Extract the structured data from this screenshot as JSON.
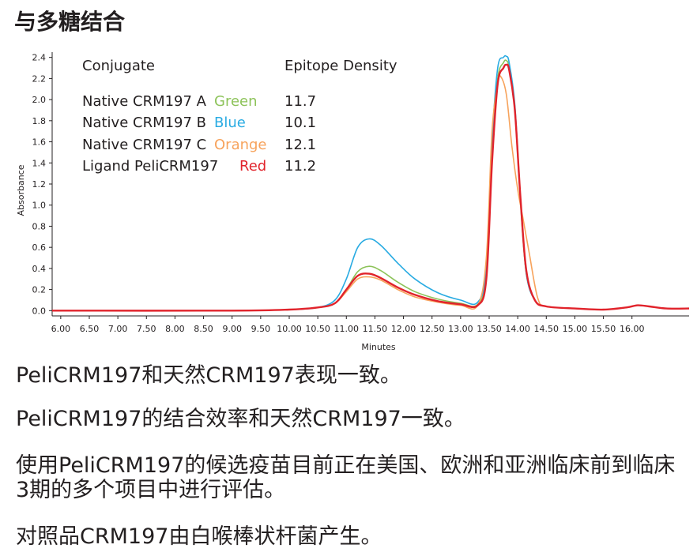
{
  "title": "与多糖结合",
  "chart_data": {
    "type": "line",
    "xlabel": "Minutes",
    "ylabel": "Absorbance",
    "xlim": [
      5.85,
      17.0
    ],
    "ylim": [
      -0.05,
      2.45
    ],
    "x_ticks": [
      "6.00",
      "6.50",
      "7.00",
      "7.50",
      "8.00",
      "8.50",
      "9.00",
      "9.50",
      "10.00",
      "10.50",
      "11.00",
      "11.50",
      "12.00",
      "12.50",
      "13.00",
      "13.50",
      "14.00",
      "14.50",
      "15.00",
      "15.50",
      "16.00"
    ],
    "y_ticks": [
      "0.0",
      "0.2",
      "0.4",
      "0.6",
      "0.8",
      "1.0",
      "1.2",
      "1.4",
      "1.6",
      "1.8",
      "2.0",
      "2.2",
      "2.4"
    ],
    "legend": {
      "header_conjugate": "Conjugate",
      "header_density": "Epitope Density",
      "rows": [
        {
          "name": "Native CRM197 A",
          "color_label": "Green",
          "density": "11.7"
        },
        {
          "name": "Native CRM197 B",
          "color_label": "Blue",
          "density": "10.1"
        },
        {
          "name": "Native CRM197 C",
          "color_label": "Orange",
          "density": "12.1"
        },
        {
          "name": "Ligand PeliCRM197",
          "color_label": "Red",
          "density": "11.2"
        }
      ]
    },
    "series": [
      {
        "name": "Green",
        "color": "#8dc35a",
        "x": [
          5.85,
          9.0,
          10.0,
          10.5,
          10.8,
          11.0,
          11.2,
          11.4,
          11.6,
          11.9,
          12.2,
          12.6,
          13.0,
          13.3,
          13.45,
          13.55,
          13.65,
          13.75,
          13.8,
          13.85,
          13.95,
          14.05,
          14.15,
          14.3,
          14.5,
          15.0,
          15.5,
          15.9,
          16.1,
          16.3,
          16.6,
          17.0
        ],
        "y": [
          0.0,
          0.0,
          0.01,
          0.03,
          0.07,
          0.2,
          0.37,
          0.42,
          0.38,
          0.27,
          0.18,
          0.11,
          0.07,
          0.06,
          0.35,
          1.5,
          2.2,
          2.35,
          2.37,
          2.3,
          1.9,
          1.0,
          0.35,
          0.1,
          0.04,
          0.02,
          0.01,
          0.03,
          0.05,
          0.04,
          0.02,
          0.02
        ]
      },
      {
        "name": "Blue",
        "color": "#29abe2",
        "x": [
          5.85,
          9.0,
          10.0,
          10.5,
          10.8,
          11.0,
          11.2,
          11.4,
          11.6,
          11.9,
          12.2,
          12.6,
          13.0,
          13.3,
          13.45,
          13.55,
          13.65,
          13.75,
          13.8,
          13.85,
          13.95,
          14.05,
          14.15,
          14.3,
          14.5,
          15.0,
          15.5,
          15.9,
          16.1,
          16.3,
          16.6,
          17.0
        ],
        "y": [
          0.0,
          0.0,
          0.01,
          0.03,
          0.1,
          0.3,
          0.6,
          0.68,
          0.62,
          0.45,
          0.3,
          0.17,
          0.1,
          0.08,
          0.4,
          1.6,
          2.3,
          2.4,
          2.41,
          2.35,
          1.95,
          1.05,
          0.35,
          0.1,
          0.04,
          0.02,
          0.01,
          0.03,
          0.05,
          0.04,
          0.02,
          0.02
        ]
      },
      {
        "name": "Orange",
        "color": "#f7a35c",
        "x": [
          5.85,
          9.0,
          10.0,
          10.5,
          10.8,
          11.0,
          11.2,
          11.4,
          11.6,
          11.9,
          12.2,
          12.6,
          13.0,
          13.3,
          13.45,
          13.55,
          13.65,
          13.7,
          13.8,
          13.9,
          14.0,
          14.1,
          14.2,
          14.35,
          14.5,
          15.0,
          15.5,
          15.9,
          16.1,
          16.3,
          16.6,
          17.0
        ],
        "y": [
          0.0,
          0.0,
          0.01,
          0.03,
          0.07,
          0.18,
          0.3,
          0.32,
          0.29,
          0.2,
          0.13,
          0.08,
          0.05,
          0.05,
          0.5,
          1.7,
          2.15,
          2.22,
          2.05,
          1.55,
          1.15,
          0.85,
          0.55,
          0.12,
          0.04,
          0.02,
          0.01,
          0.03,
          0.05,
          0.04,
          0.02,
          0.02
        ]
      },
      {
        "name": "Red",
        "color": "#e1232b",
        "x": [
          5.85,
          9.0,
          10.0,
          10.5,
          10.8,
          11.0,
          11.2,
          11.4,
          11.6,
          11.9,
          12.2,
          12.6,
          13.0,
          13.3,
          13.45,
          13.55,
          13.65,
          13.75,
          13.8,
          13.85,
          13.95,
          14.05,
          14.15,
          14.3,
          14.5,
          15.0,
          15.5,
          15.9,
          16.1,
          16.3,
          16.6,
          17.0
        ],
        "y": [
          0.0,
          0.0,
          0.01,
          0.03,
          0.07,
          0.2,
          0.33,
          0.35,
          0.31,
          0.22,
          0.15,
          0.09,
          0.06,
          0.05,
          0.3,
          1.4,
          2.15,
          2.3,
          2.33,
          2.28,
          1.9,
          1.05,
          0.38,
          0.1,
          0.04,
          0.02,
          0.01,
          0.03,
          0.05,
          0.04,
          0.02,
          0.02
        ]
      }
    ]
  },
  "bullets": [
    "PeliCRM197和天然CRM197表现一致。",
    "PeliCRM197的结合效率和天然CRM197一致。",
    "使用PeliCRM197的候选疫苗目前正在美国、欧洲和亚洲临床前到临床3期的多个项目中进行评估。",
    "对照品CRM197由白喉棒状杆菌产生。"
  ]
}
